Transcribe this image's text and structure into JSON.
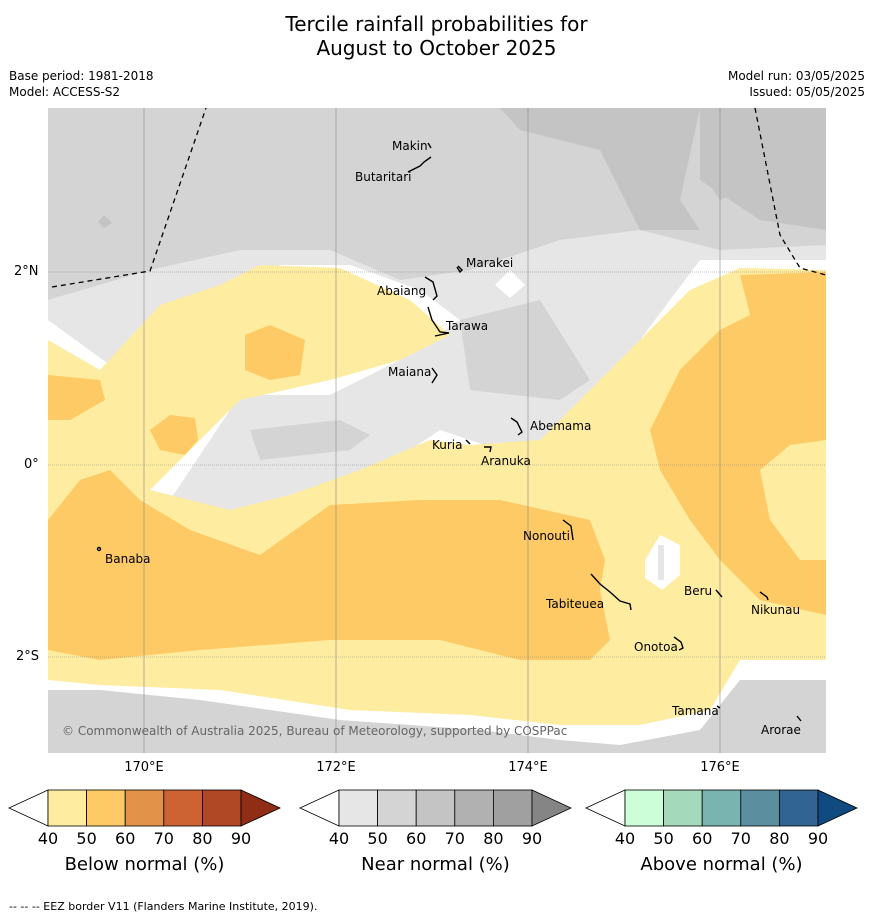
{
  "title": {
    "line1": "Tercile rainfall probabilities for",
    "line2": "August to October 2025"
  },
  "meta": {
    "base_period": "Base period: 1981-2018",
    "model": "Model: ACCESS-S2",
    "model_run": "Model run: 03/05/2025",
    "issued": "Issued: 05/05/2025"
  },
  "map": {
    "lon_ticks": [
      "170°E",
      "172°E",
      "174°E",
      "176°E"
    ],
    "lat_ticks": [
      "2°N",
      "0°",
      "2°S"
    ],
    "islands": [
      "Makin",
      "Butaritari",
      "Marakei",
      "Abaiang",
      "Tarawa",
      "Maiana",
      "Abemama",
      "Kuria",
      "Aranuka",
      "Nonouti",
      "Banaba",
      "Tabiteuea",
      "Beru",
      "Nikunau",
      "Onotoa",
      "Tamana",
      "Arorae"
    ],
    "copyright": "© Commonwealth of Australia 2025, Bureau of Meteorology, supported by COSPPac"
  },
  "colorbars": [
    {
      "title": "Below normal (%)",
      "ticks": [
        "40",
        "50",
        "60",
        "70",
        "80",
        "90"
      ],
      "colors": [
        "#ffffff",
        "#feeca0",
        "#fdca66",
        "#e3924a",
        "#cd6233",
        "#b04725",
        "#8f2d16"
      ]
    },
    {
      "title": "Near normal (%)",
      "ticks": [
        "40",
        "50",
        "60",
        "70",
        "80",
        "90"
      ],
      "colors": [
        "#ffffff",
        "#e6e6e6",
        "#d4d4d4",
        "#c4c4c4",
        "#b1b1b1",
        "#a0a0a0",
        "#858585"
      ]
    },
    {
      "title": "Above normal (%)",
      "ticks": [
        "40",
        "50",
        "60",
        "70",
        "80",
        "90"
      ],
      "colors": [
        "#ffffff",
        "#ccffd8",
        "#a5d9bc",
        "#7ab4b0",
        "#5b8fa0",
        "#316492",
        "#104a80"
      ]
    }
  ],
  "footnote": "--  --  -- EEZ border V11 (Flanders Marine Institute, 2019)."
}
